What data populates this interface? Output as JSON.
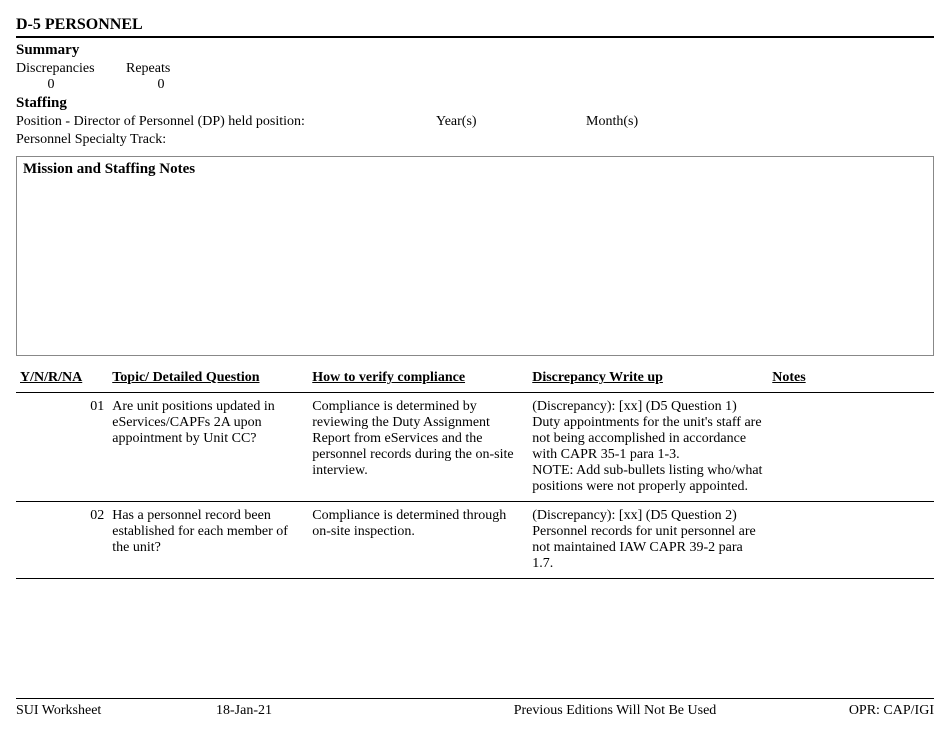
{
  "title": "D-5 PERSONNEL",
  "summary": {
    "heading": "Summary",
    "discrepancies_label": "Discrepancies",
    "repeats_label": "Repeats",
    "discrepancies_value": "0",
    "repeats_value": "0"
  },
  "staffing": {
    "heading": "Staffing",
    "position_label": "Position - Director of Personnel (DP) held position:",
    "years_label": "Year(s)",
    "months_label": "Month(s)",
    "track_label": "Personnel Specialty Track:"
  },
  "notes_box": {
    "title": "Mission and Staffing Notes"
  },
  "columns": {
    "ynrna": "Y/N/R/NA",
    "topic": "Topic/ Detailed Question",
    "verify": "How to verify compliance",
    "discrepancy": "Discrepancy Write up",
    "notes": "Notes"
  },
  "rows": [
    {
      "num": "01",
      "topic": "Are unit positions updated in eServices/CAPFs 2A upon appointment by Unit CC?",
      "verify": "Compliance is determined by reviewing the Duty Assignment Report from eServices and the personnel records during the on-site interview.",
      "discrepancy": "(Discrepancy): [xx] (D5 Question 1) Duty appointments for the unit's staff are not being accomplished in accordance with CAPR 35-1 para 1-3.\nNOTE: Add sub-bullets listing who/what positions were not properly appointed.",
      "notes": ""
    },
    {
      "num": "02",
      "topic": "Has a personnel record been established for each member of the unit?",
      "verify": "Compliance is determined through on-site inspection.",
      "discrepancy": "(Discrepancy): [xx] (D5 Question 2) Personnel records for unit personnel are not maintained IAW CAPR 39-2 para 1.7.",
      "notes": ""
    }
  ],
  "footer": {
    "left": "SUI Worksheet",
    "date": "18-Jan-21",
    "center": "Previous Editions Will Not Be Used",
    "right": "OPR: CAP/IGI"
  }
}
